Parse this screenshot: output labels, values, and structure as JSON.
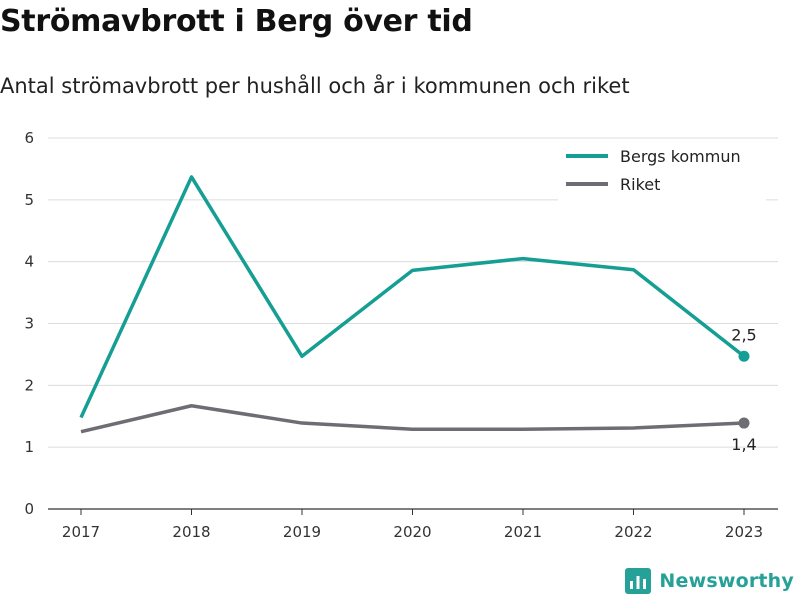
{
  "chart_data": {
    "type": "line",
    "title": "Strömavbrott i Berg över tid",
    "subtitle": "Antal strömavbrott per hushåll och år i kommunen och riket",
    "x": [
      "2017",
      "2018",
      "2019",
      "2020",
      "2021",
      "2022",
      "2023"
    ],
    "series": [
      {
        "name": "Bergs kommun",
        "color": "#159e93",
        "values": [
          1.48,
          5.37,
          2.47,
          3.86,
          4.05,
          3.87,
          2.47
        ]
      },
      {
        "name": "Riket",
        "color": "#6d6d73",
        "values": [
          1.25,
          1.67,
          1.39,
          1.29,
          1.29,
          1.31,
          1.39
        ]
      }
    ],
    "ylim": [
      0,
      6
    ],
    "yticks": [
      "0",
      "1",
      "2",
      "3",
      "4",
      "5",
      "6"
    ],
    "end_labels": [
      "2,5",
      "1,4"
    ],
    "grid": true,
    "legend_position": "top-right"
  },
  "brand": {
    "name": "Newsworthy",
    "color": "#26a197"
  }
}
